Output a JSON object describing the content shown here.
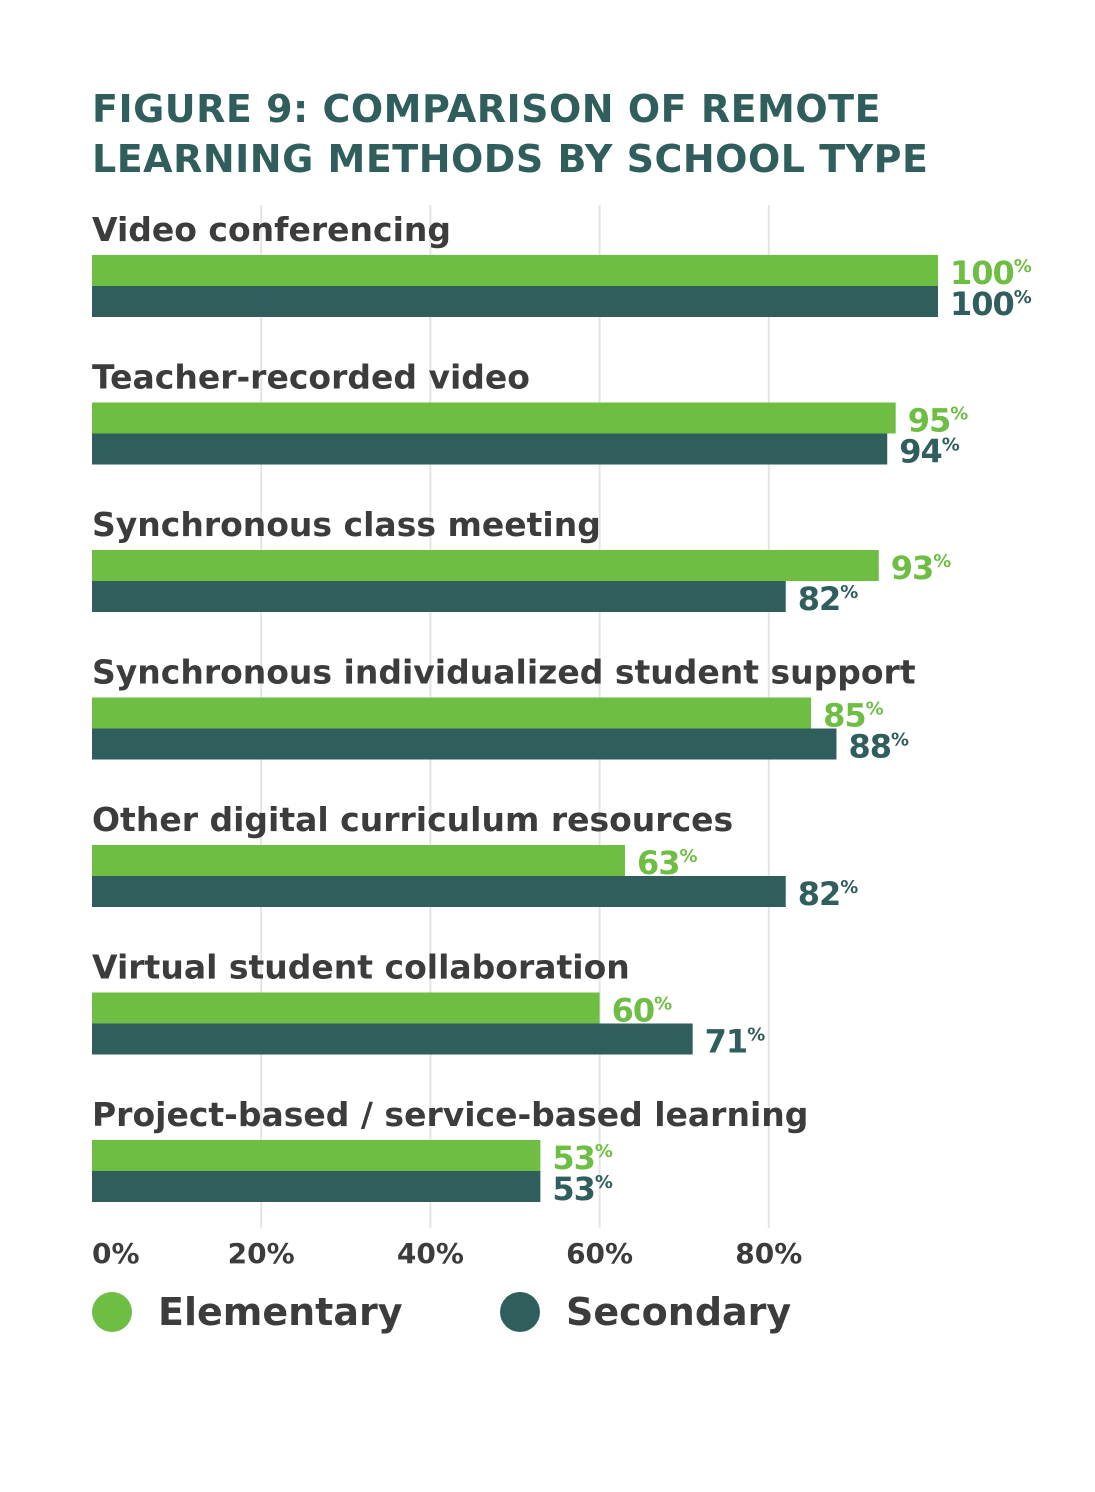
{
  "chart_data": {
    "type": "bar",
    "orientation": "horizontal",
    "title": "FIGURE 9: COMPARISON OF REMOTE LEARNING METHODS BY SCHOOL TYPE",
    "categories": [
      "Video conferencing",
      "Teacher-recorded video",
      "Synchronous class meeting",
      "Synchronous individualized student support",
      "Other digital curriculum resources",
      "Virtual student collaboration",
      "Project-based / service-based learning"
    ],
    "series": [
      {
        "name": "Elementary",
        "color": "#6fbe44",
        "values": [
          100,
          95,
          93,
          85,
          63,
          60,
          53
        ]
      },
      {
        "name": "Secondary",
        "color": "#2f5e5c",
        "values": [
          100,
          94,
          82,
          88,
          82,
          71,
          53
        ]
      }
    ],
    "xticks": [
      "0%",
      "20%",
      "40%",
      "60%",
      "80%"
    ],
    "xlim": [
      0,
      100
    ],
    "value_suffix": "%",
    "grid": true,
    "legend_position": "bottom-left"
  }
}
